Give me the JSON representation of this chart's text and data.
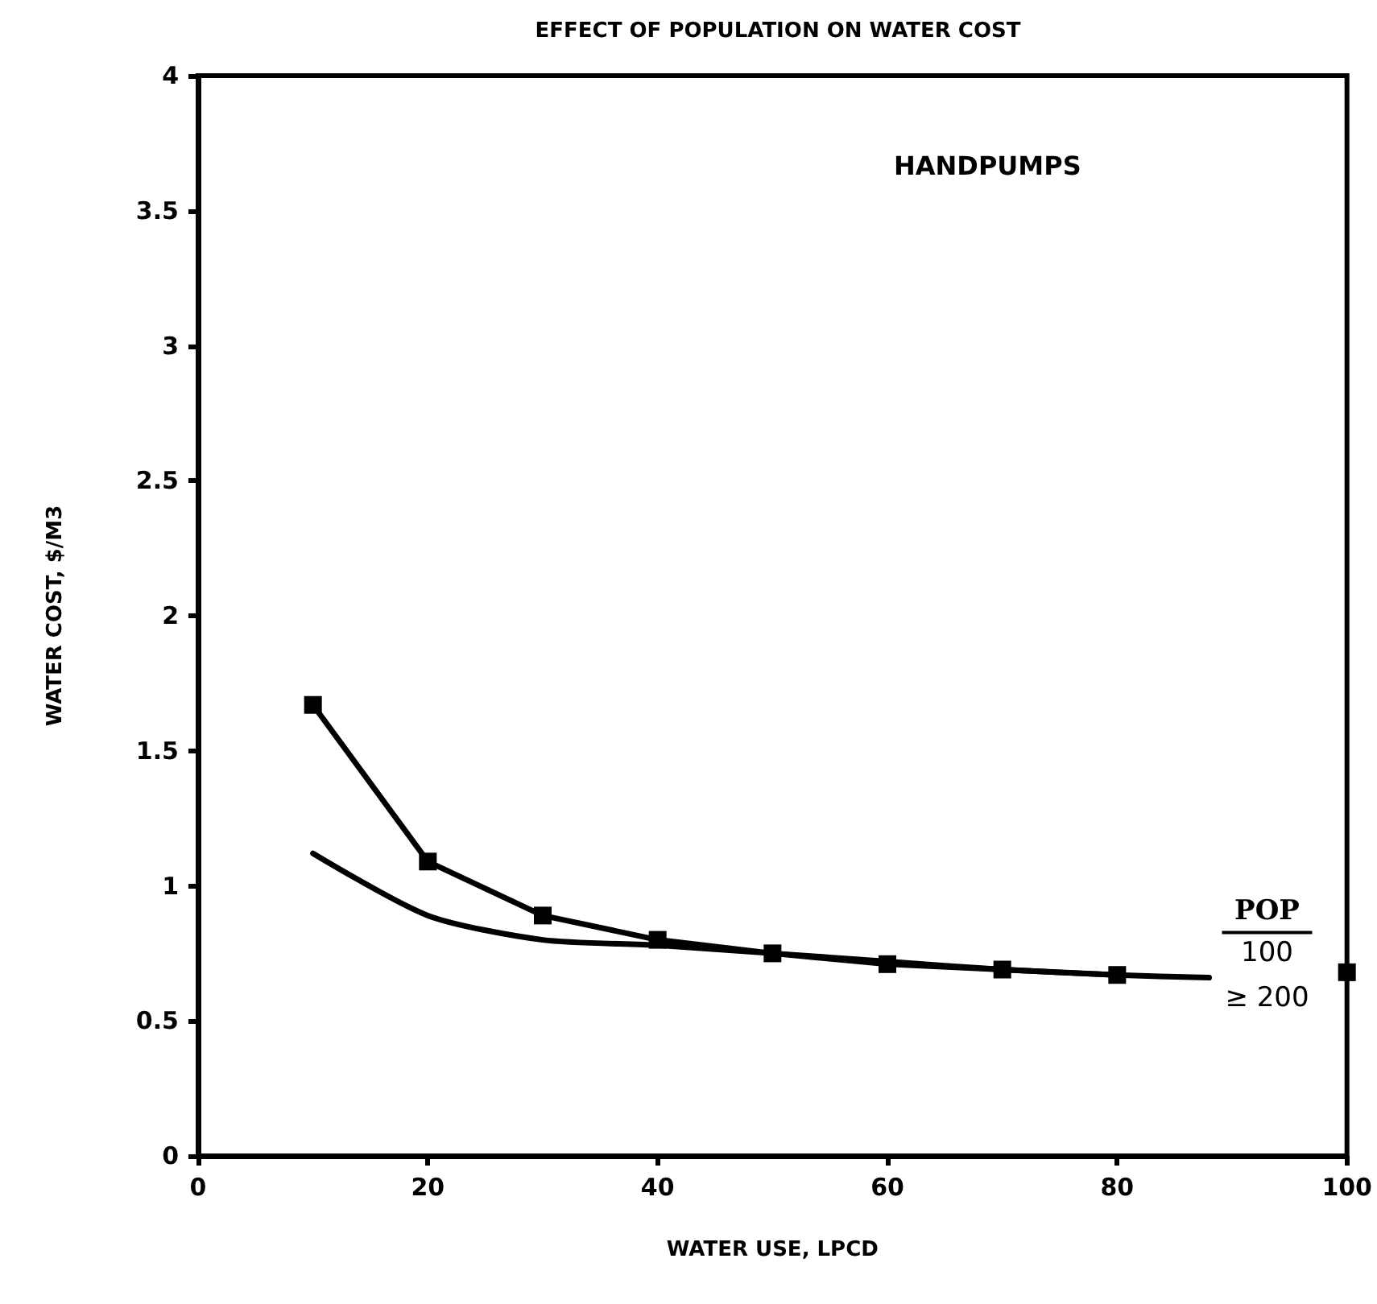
{
  "chart_data": {
    "type": "line",
    "title": "EFFECT OF POPULATION ON WATER COST",
    "xlabel": "WATER USE, LPCD",
    "ylabel": "WATER COST, $/M3",
    "annotations": [
      "HANDPUMPS"
    ],
    "legend_title": "POP",
    "legend": "right",
    "xlim": [
      0,
      100
    ],
    "xticks": [
      0,
      20,
      40,
      60,
      80,
      100
    ],
    "ylim": [
      0,
      4
    ],
    "yticks": [
      0,
      0.5,
      1,
      1.5,
      2,
      2.5,
      3,
      3.5,
      4
    ],
    "grid": false,
    "series": [
      {
        "name": "100",
        "color": "#000000",
        "marker": "square",
        "x": [
          10,
          20,
          30,
          40,
          50,
          60,
          70,
          80,
          90,
          100
        ],
        "values": [
          1.67,
          1.09,
          0.89,
          0.8,
          0.75,
          0.71,
          0.69,
          0.67,
          null,
          0.68
        ]
      },
      {
        "name": "≥ 200",
        "color": "#000000",
        "marker": "none",
        "x": [
          10,
          20,
          30,
          40,
          50,
          60,
          70,
          80,
          88
        ],
        "values": [
          1.12,
          0.89,
          0.8,
          0.78,
          0.75,
          0.72,
          0.69,
          0.67,
          0.66
        ]
      }
    ]
  }
}
